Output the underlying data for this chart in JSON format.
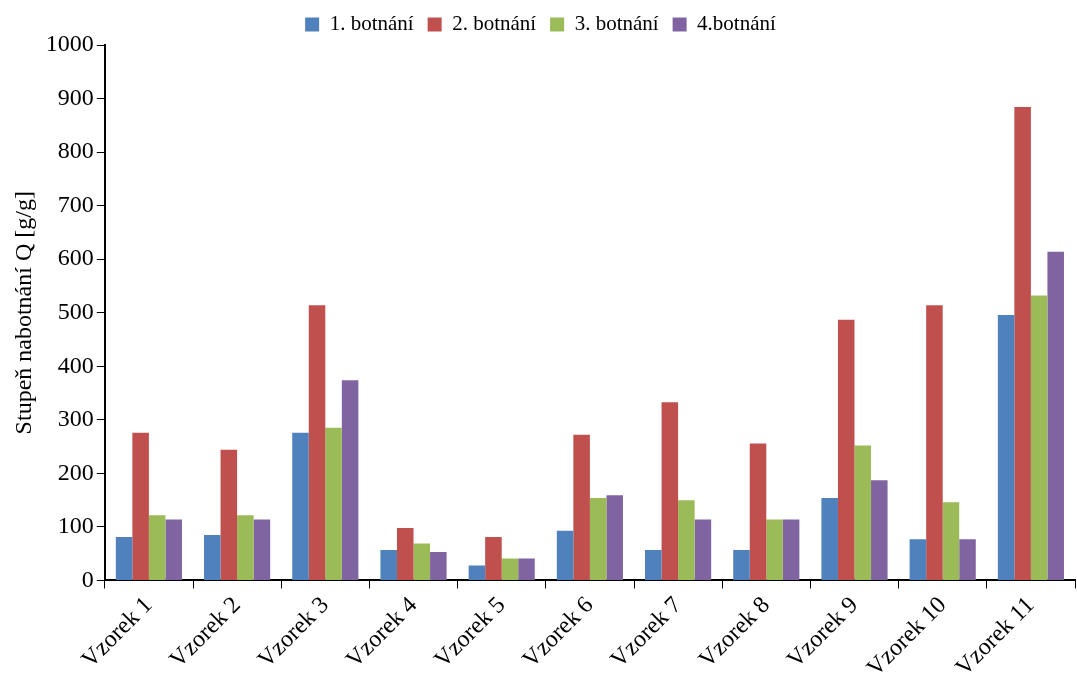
{
  "chart_data": {
    "type": "bar",
    "ylabel": "Stupeň nabotnání Q [g/g]",
    "categories": [
      "Vzorek 1",
      "Vzorek 2",
      "Vzorek 3",
      "Vzorek 4",
      "Vzorek 5",
      "Vzorek 6",
      "Vzorek 7",
      "Vzorek 8",
      "Vzorek 9",
      "Vzorek 10",
      "Vzorek 11"
    ],
    "series": [
      {
        "name": "1. botnání",
        "color": "#4f81bd",
        "values": [
          81,
          85,
          276,
          57,
          28,
          93,
          57,
          57,
          154,
          77,
          496
        ]
      },
      {
        "name": "2. botnání",
        "color": "#c0504d",
        "values": [
          276,
          244,
          514,
          98,
          81,
          272,
          333,
          256,
          487,
          514,
          884
        ]
      },
      {
        "name": "3. botnání",
        "color": "#9bbb59",
        "values": [
          122,
          122,
          285,
          69,
          41,
          154,
          150,
          114,
          252,
          146,
          532
        ]
      },
      {
        "name": "4.botnání",
        "color": "#8064a2",
        "values": [
          114,
          114,
          374,
          53,
          41,
          159,
          114,
          114,
          187,
          77,
          614
        ]
      }
    ],
    "ylim": [
      0,
      1000
    ],
    "yticks": [
      0,
      100,
      200,
      300,
      400,
      500,
      600,
      700,
      800,
      900,
      1000
    ],
    "grid": false,
    "legend": "top"
  }
}
